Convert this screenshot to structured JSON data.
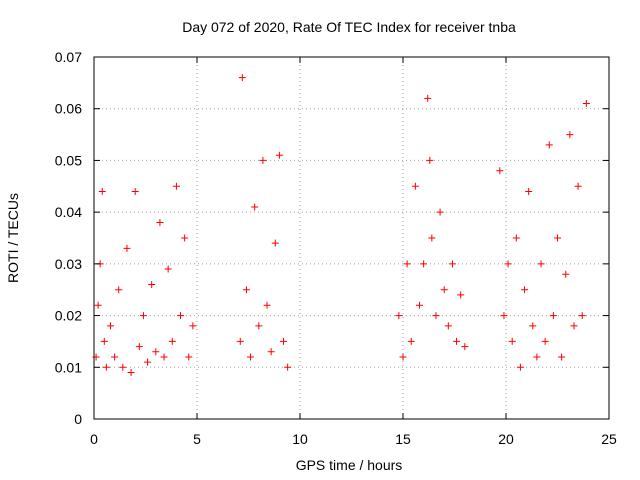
{
  "chart_data": {
    "type": "scatter",
    "title": "Day 072 of 2020, Rate Of TEC Index for receiver tnba",
    "xlabel": "GPS time / hours",
    "ylabel": "ROTI / TECUs",
    "xlim": [
      0,
      25
    ],
    "ylim": [
      0,
      0.07
    ],
    "x_ticks": [
      "0",
      "5",
      "10",
      "15",
      "20",
      "25"
    ],
    "y_ticks": [
      "0",
      "0.01",
      "0.02",
      "0.03",
      "0.04",
      "0.05",
      "0.06",
      "0.07"
    ],
    "grid": true,
    "marker": "+",
    "color": "#ff0000",
    "series": [
      {
        "x": [
          0.1,
          0.2,
          0.3,
          0.4,
          0.5,
          0.6,
          0.8,
          1.0,
          1.2,
          1.4,
          1.6,
          1.8,
          2.0,
          2.2,
          2.4,
          2.6,
          2.8,
          3.0,
          3.2,
          3.4,
          3.6,
          3.8,
          4.0,
          4.2,
          4.4,
          4.6,
          4.8,
          7.1,
          7.2,
          7.4,
          7.6,
          7.8,
          8.0,
          8.2,
          8.4,
          8.6,
          8.8,
          9.0,
          9.2,
          9.4,
          14.8,
          15.0,
          15.2,
          15.4,
          15.6,
          15.8,
          16.0,
          16.2,
          16.3,
          16.4,
          16.6,
          16.8,
          17.0,
          17.2,
          17.4,
          17.6,
          17.8,
          18.0,
          19.7,
          19.9,
          20.1,
          20.3,
          20.5,
          20.7,
          20.9,
          21.1,
          21.3,
          21.5,
          21.7,
          21.9,
          22.1,
          22.3,
          22.5,
          22.7,
          22.9,
          23.1,
          23.3,
          23.5,
          23.7,
          23.9
        ],
        "y": [
          0.012,
          0.022,
          0.03,
          0.044,
          0.015,
          0.01,
          0.018,
          0.012,
          0.025,
          0.01,
          0.033,
          0.009,
          0.044,
          0.014,
          0.02,
          0.011,
          0.026,
          0.013,
          0.038,
          0.012,
          0.029,
          0.015,
          0.045,
          0.02,
          0.035,
          0.012,
          0.018,
          0.015,
          0.066,
          0.025,
          0.012,
          0.041,
          0.018,
          0.05,
          0.022,
          0.013,
          0.034,
          0.051,
          0.015,
          0.01,
          0.02,
          0.012,
          0.03,
          0.015,
          0.045,
          0.022,
          0.03,
          0.062,
          0.05,
          0.035,
          0.02,
          0.04,
          0.025,
          0.018,
          0.03,
          0.015,
          0.024,
          0.014,
          0.048,
          0.02,
          0.03,
          0.015,
          0.035,
          0.01,
          0.025,
          0.044,
          0.018,
          0.012,
          0.03,
          0.015,
          0.053,
          0.02,
          0.035,
          0.012,
          0.028,
          0.055,
          0.018,
          0.045,
          0.02,
          0.061
        ]
      }
    ]
  }
}
